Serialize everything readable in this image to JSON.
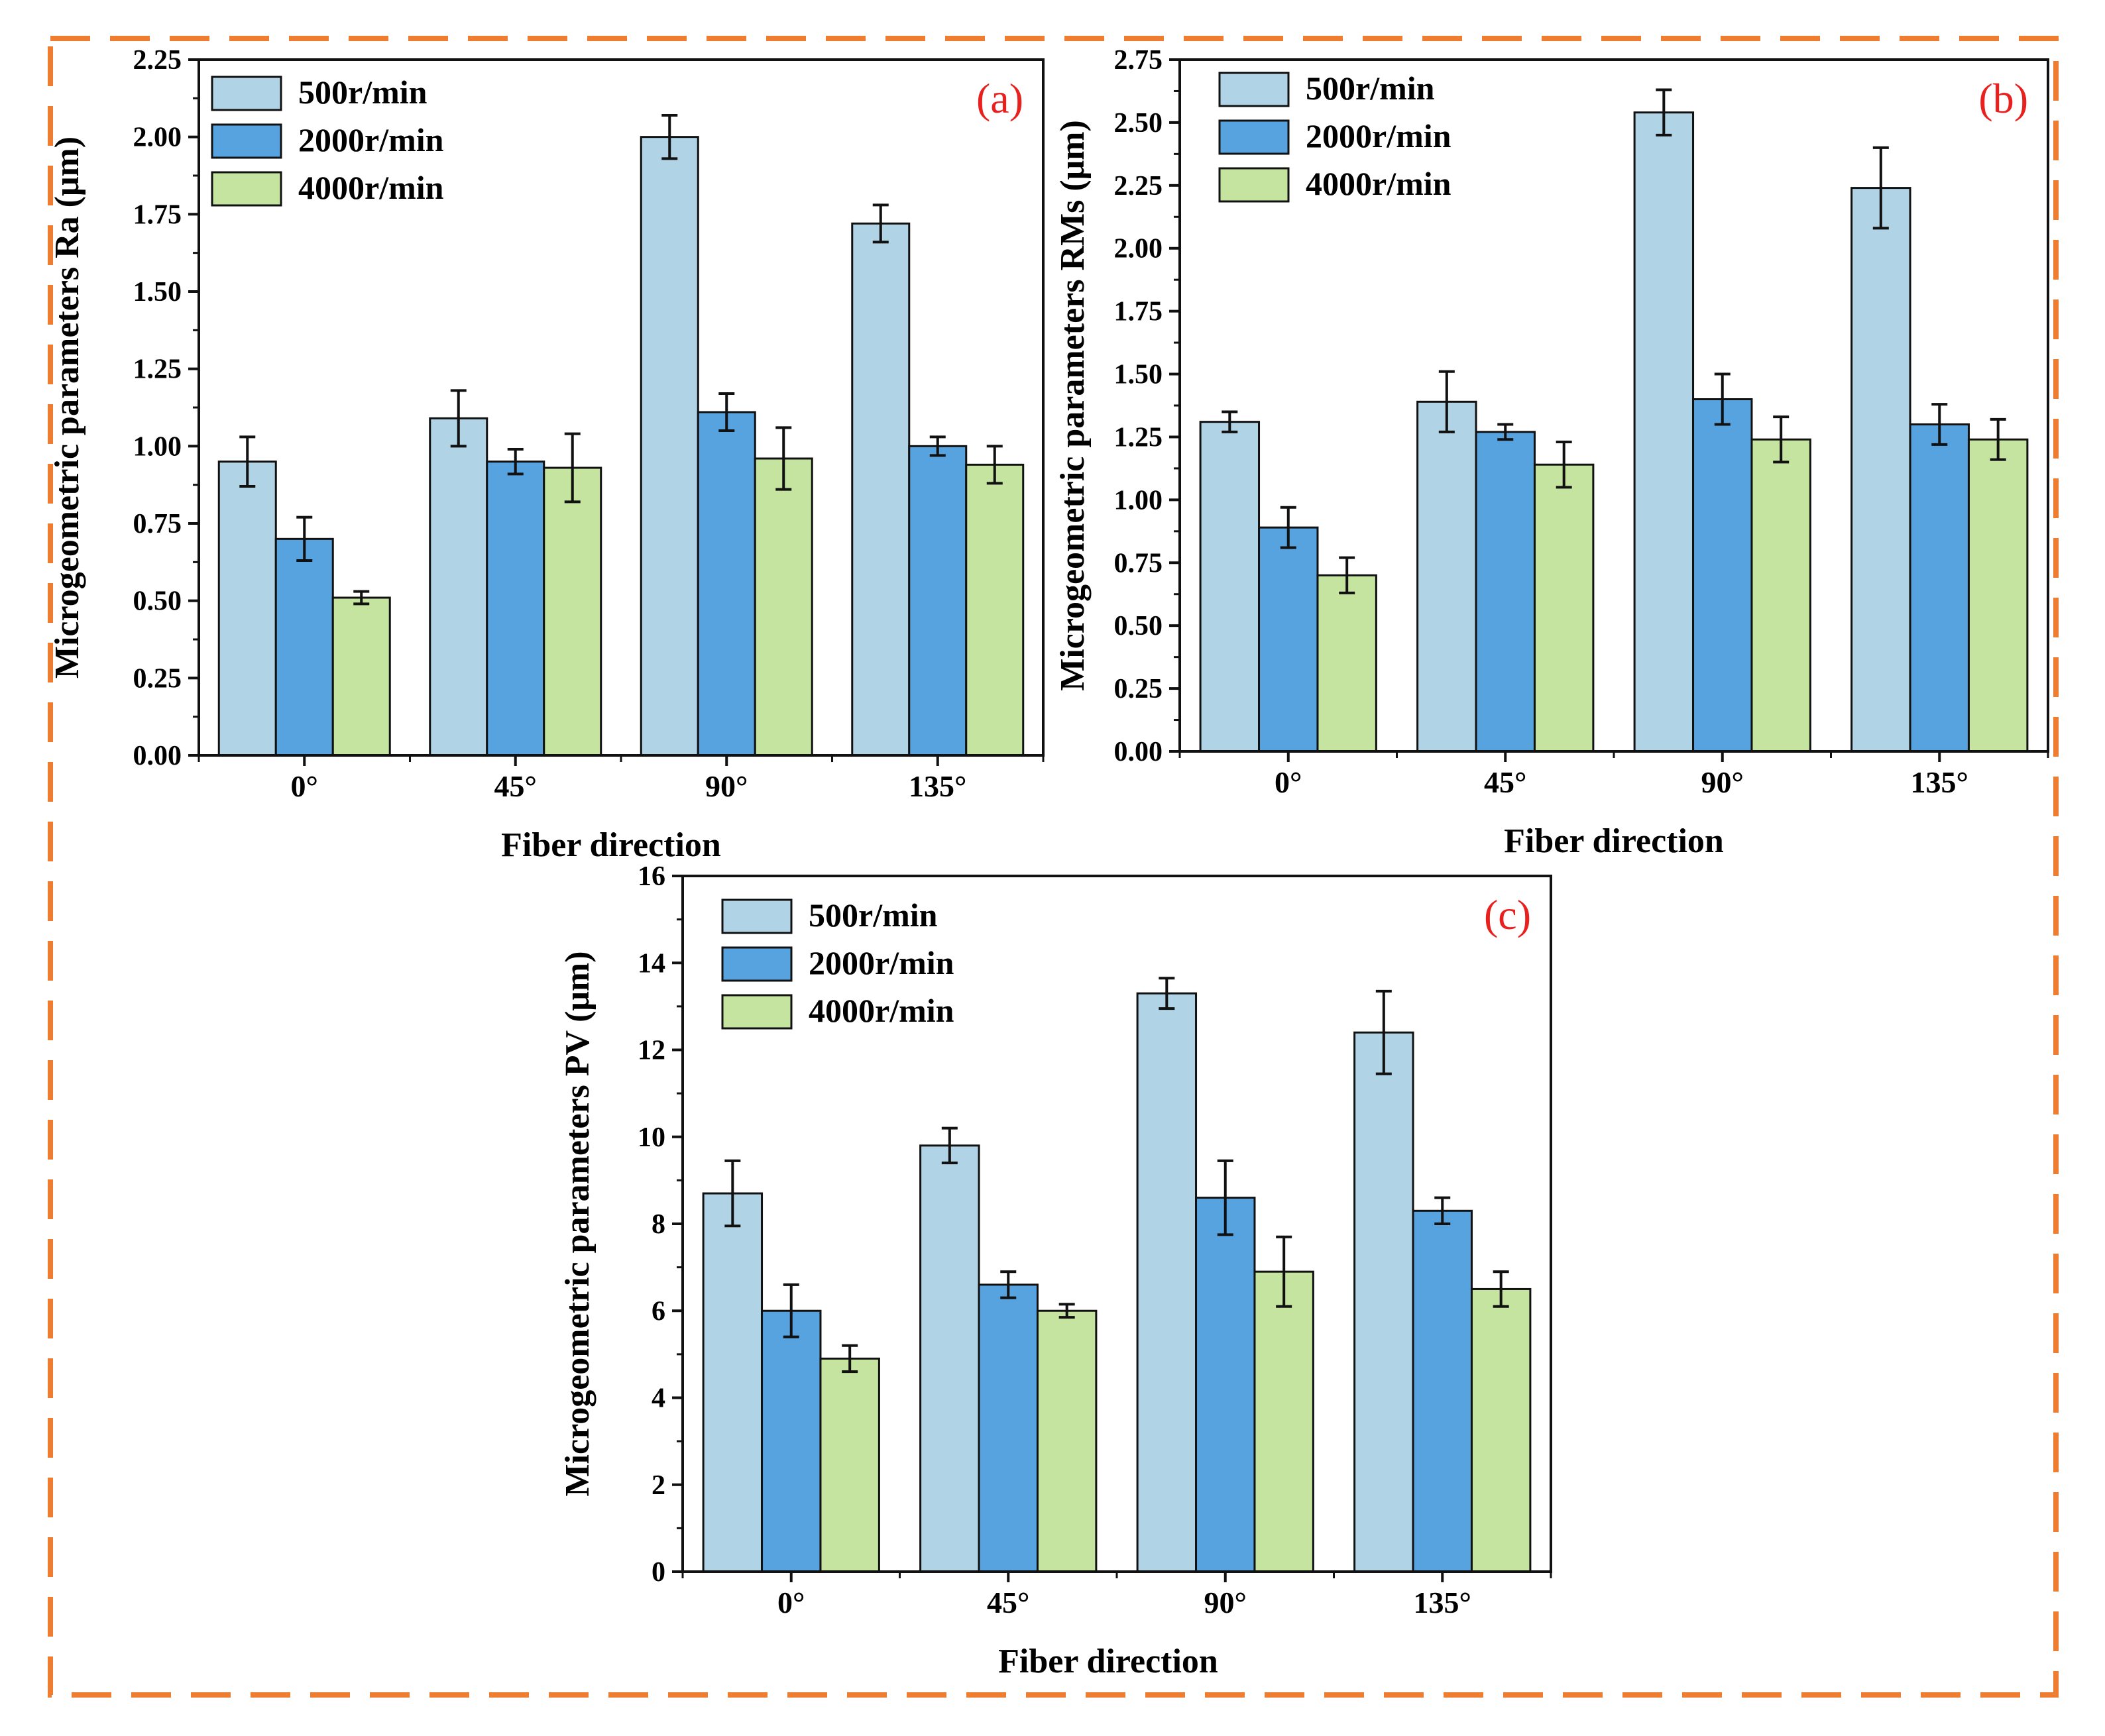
{
  "colors": {
    "frame": "#ee7d31",
    "series": [
      "#b1d3e6",
      "#57a3e0",
      "#c4e49f"
    ],
    "panel_label": "#e8211f"
  },
  "chart_data": [
    {
      "type": "bar",
      "panel_label": "(a)",
      "xlabel": "Fiber direction",
      "ylabel": "Microgeometric parameters Ra (μm)",
      "categories": [
        "0°",
        "45°",
        "90°",
        "135°"
      ],
      "ylim": [
        0,
        2.25
      ],
      "yticks": [
        0.0,
        0.25,
        0.5,
        0.75,
        1.0,
        1.25,
        1.5,
        1.75,
        2.0,
        2.25
      ],
      "tick_decimals": 2,
      "legend_position": "top-left",
      "series": [
        {
          "name": "500r/min",
          "values": [
            0.95,
            1.09,
            2.0,
            1.72
          ],
          "errors": [
            0.08,
            0.09,
            0.07,
            0.06
          ]
        },
        {
          "name": "2000r/min",
          "values": [
            0.7,
            0.95,
            1.11,
            1.0
          ],
          "errors": [
            0.07,
            0.04,
            0.06,
            0.03
          ]
        },
        {
          "name": "4000r/min",
          "values": [
            0.51,
            0.93,
            0.96,
            0.94
          ],
          "errors": [
            0.02,
            0.11,
            0.1,
            0.06
          ]
        }
      ]
    },
    {
      "type": "bar",
      "panel_label": "(b)",
      "xlabel": "Fiber direction",
      "ylabel": "Microgeometric parameters RMs (μm)",
      "categories": [
        "0°",
        "45°",
        "90°",
        "135°"
      ],
      "ylim": [
        0,
        2.75
      ],
      "yticks": [
        0.0,
        0.25,
        0.5,
        0.75,
        1.0,
        1.25,
        1.5,
        1.75,
        2.0,
        2.25,
        2.5,
        2.75
      ],
      "tick_decimals": 2,
      "legend_position": "top-left",
      "series": [
        {
          "name": "500r/min",
          "values": [
            1.31,
            1.39,
            2.54,
            2.24
          ],
          "errors": [
            0.04,
            0.12,
            0.09,
            0.16
          ]
        },
        {
          "name": "2000r/min",
          "values": [
            0.89,
            1.27,
            1.4,
            1.3
          ],
          "errors": [
            0.08,
            0.03,
            0.1,
            0.08
          ]
        },
        {
          "name": "4000r/min",
          "values": [
            0.7,
            1.14,
            1.24,
            1.24
          ],
          "errors": [
            0.07,
            0.09,
            0.09,
            0.08
          ]
        }
      ]
    },
    {
      "type": "bar",
      "panel_label": "(c)",
      "xlabel": "Fiber direction",
      "ylabel": "Microgeometric parameters PV (μm)",
      "categories": [
        "0°",
        "45°",
        "90°",
        "135°"
      ],
      "ylim": [
        0,
        16
      ],
      "yticks": [
        0,
        2,
        4,
        6,
        8,
        10,
        12,
        14,
        16
      ],
      "tick_decimals": 0,
      "legend_position": "top-left",
      "series": [
        {
          "name": "500r/min",
          "values": [
            8.7,
            9.8,
            13.3,
            12.4
          ],
          "errors": [
            0.75,
            0.4,
            0.35,
            0.95
          ]
        },
        {
          "name": "2000r/min",
          "values": [
            6.0,
            6.6,
            8.6,
            8.3
          ],
          "errors": [
            0.6,
            0.3,
            0.85,
            0.3
          ]
        },
        {
          "name": "4000r/min",
          "values": [
            4.9,
            6.0,
            6.9,
            6.5
          ],
          "errors": [
            0.3,
            0.15,
            0.8,
            0.4
          ]
        }
      ]
    }
  ]
}
